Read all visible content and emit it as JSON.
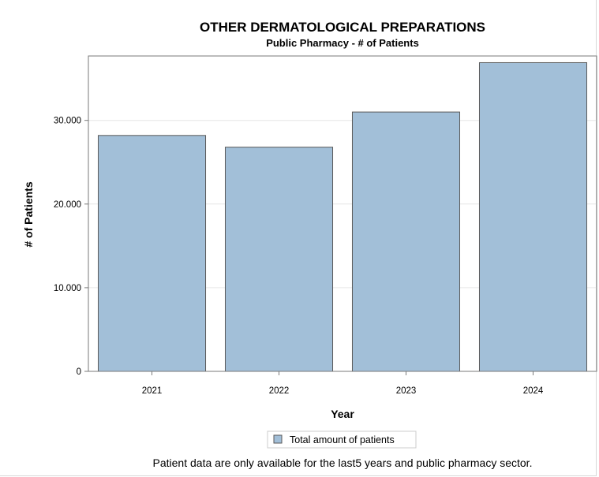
{
  "chart_data": {
    "type": "bar",
    "title": "OTHER DERMATOLOGICAL PREPARATIONS",
    "subtitle": "Public Pharmacy - # of Patients",
    "xlabel": "Year",
    "ylabel": "# of Patients",
    "categories": [
      "2021",
      "2022",
      "2023",
      "2024"
    ],
    "series": [
      {
        "name": "Total amount of patients",
        "values": [
          28200,
          26800,
          31000,
          36900
        ]
      }
    ],
    "ylim": [
      0,
      37700
    ],
    "yticks": [
      0,
      10000,
      20000,
      30000
    ],
    "ytick_labels": [
      "0",
      "10.000",
      "20.000",
      "30.000"
    ],
    "grid": "horizontal",
    "legend_position": "bottom",
    "bar_color": "#a2bfd8",
    "bar_edge_color": "#5a5a5a",
    "footnote": "Patient data are only available for the last5 years and public pharmacy sector."
  }
}
